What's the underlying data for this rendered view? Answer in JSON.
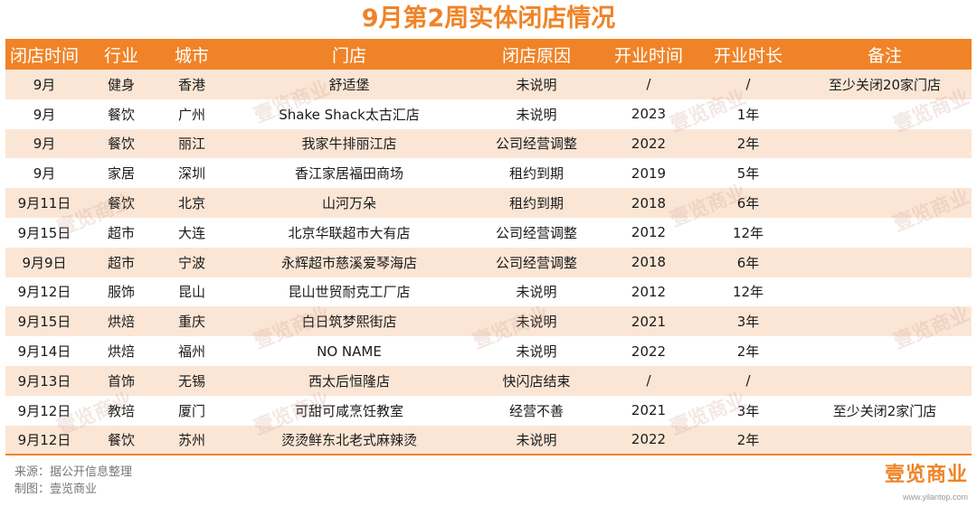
{
  "title": "9月第2周实体闭店情况",
  "columns": [
    "闭店时间",
    "行业",
    "城市",
    "门店",
    "闭店原因",
    "开业时间",
    "开业时长",
    "备注"
  ],
  "rows": [
    [
      "9月",
      "健身",
      "香港",
      "舒适堡",
      "未说明",
      "/",
      "/",
      "至少关闭20家门店"
    ],
    [
      "9月",
      "餐饮",
      "广州",
      "Shake Shack太古汇店",
      "未说明",
      "2023",
      "1年",
      ""
    ],
    [
      "9月",
      "餐饮",
      "丽江",
      "我家牛排丽江店",
      "公司经营调整",
      "2022",
      "2年",
      ""
    ],
    [
      "9月",
      "家居",
      "深圳",
      "香江家居福田商场",
      "租约到期",
      "2019",
      "5年",
      ""
    ],
    [
      "9月11日",
      "餐饮",
      "北京",
      "山河万朵",
      "租约到期",
      "2018",
      "6年",
      ""
    ],
    [
      "9月15日",
      "超市",
      "大连",
      "北京华联超市大有店",
      "公司经营调整",
      "2012",
      "12年",
      ""
    ],
    [
      "9月9日",
      "超市",
      "宁波",
      "永辉超市慈溪爱琴海店",
      "公司经营调整",
      "2018",
      "6年",
      ""
    ],
    [
      "9月12日",
      "服饰",
      "昆山",
      "昆山世贸耐克工厂店",
      "未说明",
      "2012",
      "12年",
      ""
    ],
    [
      "9月15日",
      "烘焙",
      "重庆",
      "白日筑梦熙街店",
      "未说明",
      "2021",
      "3年",
      ""
    ],
    [
      "9月14日",
      "烘焙",
      "福州",
      "NO NAME",
      "未说明",
      "2022",
      "2年",
      ""
    ],
    [
      "9月13日",
      "首饰",
      "无锡",
      "西太后恒隆店",
      "快闪店结束",
      "/",
      "/",
      ""
    ],
    [
      "9月12日",
      "教培",
      "厦门",
      "可甜可咸烹饪教室",
      "经营不善",
      "2021",
      "3年",
      "至少关闭2家门店"
    ],
    [
      "9月12日",
      "餐饮",
      "苏州",
      "烫烫鲜东北老式麻辣烫",
      "未说明",
      "2022",
      "2年",
      ""
    ]
  ],
  "footer": {
    "source": "来源：据公开信息整理",
    "maker": "制图：壹览商业"
  },
  "brand": {
    "logo": "壹览商业",
    "url": "www.yilantop.com"
  },
  "watermark": "壹览商业",
  "colors": {
    "accent": "#f08327",
    "row_odd": "#fbe6d6",
    "row_even": "#ffffff"
  }
}
